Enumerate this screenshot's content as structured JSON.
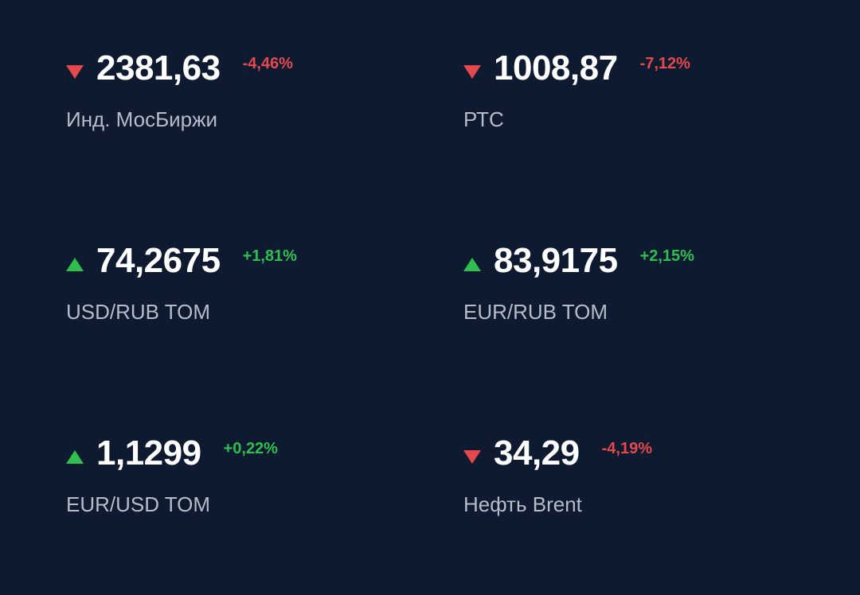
{
  "colors": {
    "background": "#0d1a30",
    "value_text": "#ffffff",
    "label_text": "#b6bcc8",
    "negative": "#e5484d",
    "positive": "#2fbf4f"
  },
  "tickers": [
    {
      "value": "2381,63",
      "change": "-4,46%",
      "direction": "down",
      "name": "Инд. МосБиржи",
      "arrow_icon": "triangle-down-icon"
    },
    {
      "value": "1008,87",
      "change": "-7,12%",
      "direction": "down",
      "name": "РТС",
      "arrow_icon": "triangle-down-icon"
    },
    {
      "value": "74,2675",
      "change": "+1,81%",
      "direction": "up",
      "name": "USD/RUB TOM",
      "arrow_icon": "triangle-up-icon"
    },
    {
      "value": "83,9175",
      "change": "+2,15%",
      "direction": "up",
      "name": "EUR/RUB TOM",
      "arrow_icon": "triangle-up-icon"
    },
    {
      "value": "1,1299",
      "change": "+0,22%",
      "direction": "up",
      "name": "EUR/USD TOM",
      "arrow_icon": "triangle-up-icon"
    },
    {
      "value": "34,29",
      "change": "-4,19%",
      "direction": "down",
      "name": "Нефть Brent",
      "arrow_icon": "triangle-down-icon"
    }
  ]
}
